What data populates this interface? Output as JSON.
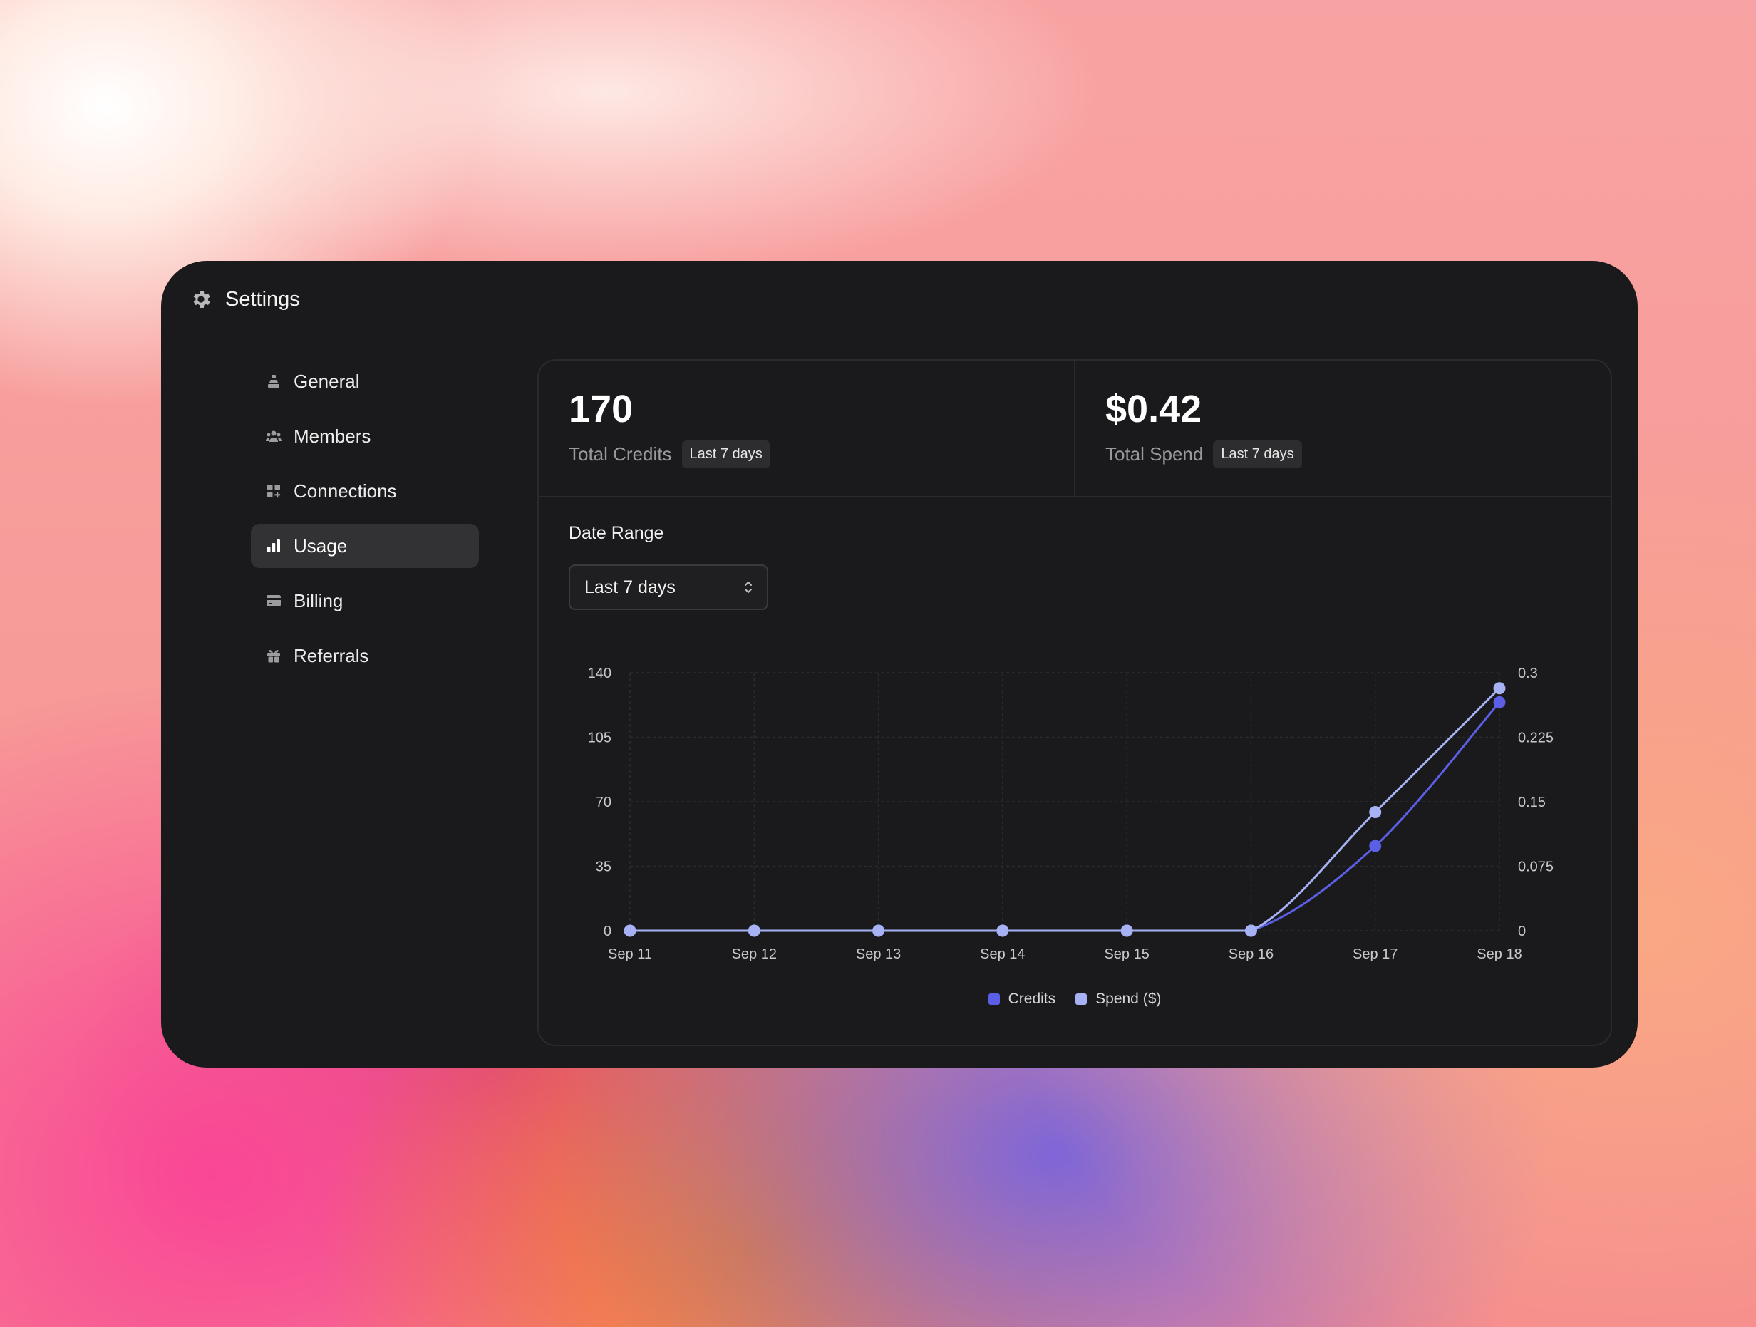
{
  "window": {
    "title": "Settings"
  },
  "sidebar": {
    "items": [
      {
        "label": "General",
        "icon": "layers-icon"
      },
      {
        "label": "Members",
        "icon": "users-icon"
      },
      {
        "label": "Connections",
        "icon": "grid-plus-icon"
      },
      {
        "label": "Usage",
        "icon": "bar-chart-icon",
        "active": true
      },
      {
        "label": "Billing",
        "icon": "credit-card-icon"
      },
      {
        "label": "Referrals",
        "icon": "gift-icon"
      }
    ]
  },
  "stats": {
    "credits": {
      "value": "170",
      "label": "Total Credits",
      "badge": "Last 7 days"
    },
    "spend": {
      "value": "$0.42",
      "label": "Total Spend",
      "badge": "Last 7 days"
    }
  },
  "date_range": {
    "label": "Date Range",
    "selected": "Last 7 days"
  },
  "colors": {
    "credits": "#5b5fe6",
    "spend": "#a7b2f5",
    "accent": "#5b5fe6"
  },
  "chart_data": {
    "type": "line",
    "categories": [
      "Sep 11",
      "Sep 12",
      "Sep 13",
      "Sep 14",
      "Sep 15",
      "Sep 16",
      "Sep 17",
      "Sep 18"
    ],
    "series": [
      {
        "name": "Credits",
        "axis": "left",
        "values": [
          0,
          0,
          0,
          0,
          0,
          0,
          46,
          124
        ]
      },
      {
        "name": "Spend ($)",
        "axis": "right",
        "values": [
          0,
          0,
          0,
          0,
          0,
          0,
          0.138,
          0.282
        ]
      }
    ],
    "y_left": {
      "ticks": [
        "0",
        "35",
        "70",
        "105",
        "140"
      ],
      "range": [
        0,
        140
      ]
    },
    "y_right": {
      "ticks": [
        "0",
        "0.075",
        "0.15",
        "0.225",
        "0.3"
      ],
      "range": [
        0,
        0.3
      ]
    },
    "grid": true,
    "legend": "bottom-center"
  }
}
